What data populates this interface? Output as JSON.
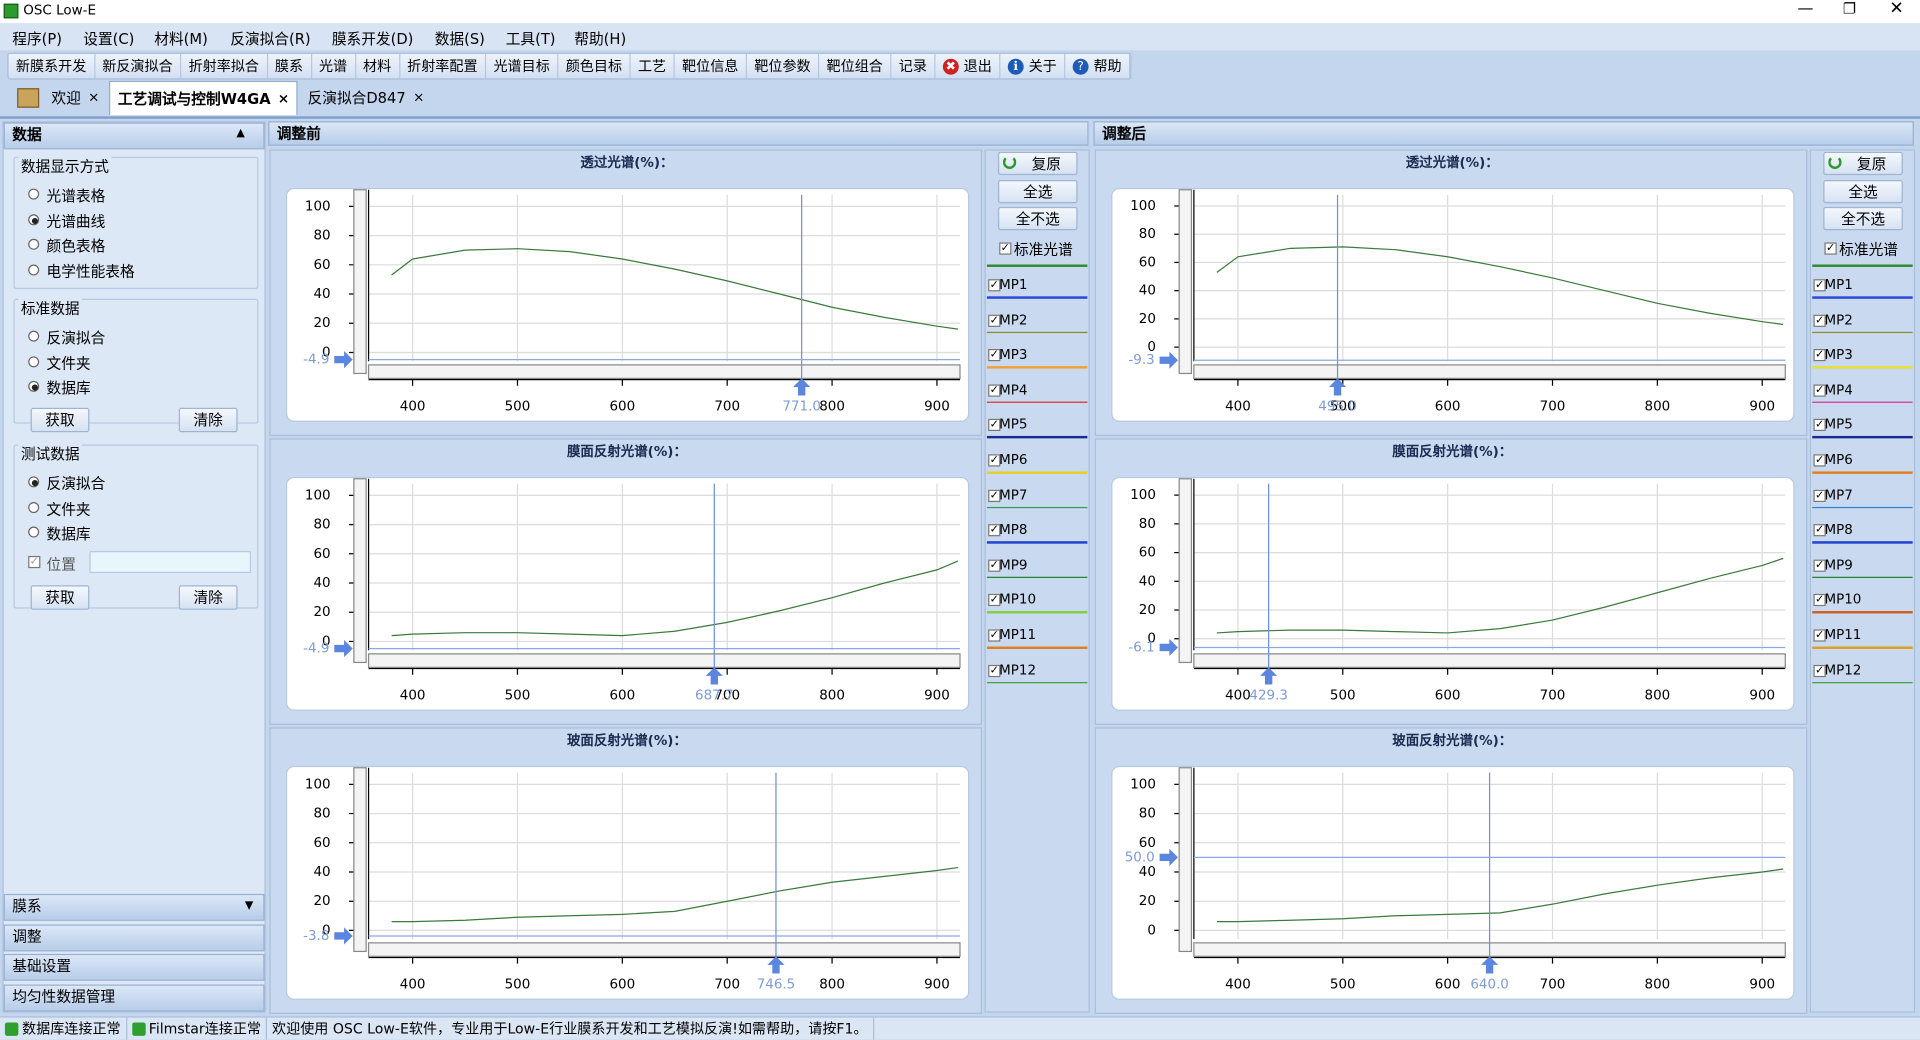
{
  "window": {
    "title": "OSC Low-E"
  },
  "menu": [
    "程序(P)",
    "设置(C)",
    "材料(M)",
    "反演拟合(R)",
    "膜系开发(D)",
    "数据(S)",
    "工具(T)",
    "帮助(H)"
  ],
  "toolbar": [
    "新膜系开发",
    "新反演拟合",
    "折射率拟合",
    "膜系",
    "光谱",
    "材料",
    "折射率配置",
    "光谱目标",
    "颜色目标",
    "工艺",
    "靶位信息",
    "靶位参数",
    "靶位组合",
    "记录",
    "退出",
    "关于",
    "帮助"
  ],
  "tabs": [
    "欢迎",
    "工艺调试与控制W4GA",
    "反演拟合D847"
  ],
  "active_tab": 1,
  "left": {
    "header": "数据",
    "groups": [
      {
        "title": "数据显示方式",
        "options": [
          "光谱表格",
          "光谱曲线",
          "颜色表格",
          "电学性能表格"
        ],
        "selected": 1
      },
      {
        "title": "标准数据",
        "options": [
          "反演拟合",
          "文件夹",
          "数据库"
        ],
        "selected": 2,
        "buttons": [
          "获取",
          "清除"
        ]
      },
      {
        "title": "测试数据",
        "options": [
          "反演拟合",
          "文件夹",
          "数据库"
        ],
        "selected": 0,
        "checkbox": "位置",
        "buttons": [
          "获取",
          "清除"
        ]
      }
    ],
    "accordion": [
      "膜系",
      "调整",
      "基础设置",
      "均匀性数据管理"
    ]
  },
  "panels": [
    {
      "title": "调整前",
      "buttons": [
        "复原",
        "全选",
        "全不选"
      ],
      "standard": "标准光谱",
      "mp": [
        {
          "name": "MP1",
          "color": "#2b45d8"
        },
        {
          "name": "MP2",
          "color": "#8a8a2a"
        },
        {
          "name": "MP3",
          "color": "#f0a030"
        },
        {
          "name": "MP4",
          "color": "#d83030"
        },
        {
          "name": "MP5",
          "color": "#1a2a90"
        },
        {
          "name": "MP6",
          "color": "#e8d020"
        },
        {
          "name": "MP7",
          "color": "#30a050"
        },
        {
          "name": "MP8",
          "color": "#2040d0"
        },
        {
          "name": "MP9",
          "color": "#208030"
        },
        {
          "name": "MP10",
          "color": "#80d040"
        },
        {
          "name": "MP11",
          "color": "#e08020"
        },
        {
          "name": "MP12",
          "color": "#40a040"
        }
      ],
      "charts": [
        {
          "type": "line",
          "title": "透过光谱(%)：",
          "color": "#3a7a3a",
          "x": [
            380,
            400,
            450,
            500,
            550,
            600,
            650,
            700,
            750,
            800,
            850,
            900,
            920
          ],
          "values": [
            53,
            64,
            70,
            71,
            69,
            64,
            57,
            49,
            40,
            31,
            24,
            18,
            16
          ],
          "xlim": [
            358,
            922
          ],
          "ylim": [
            -6,
            108
          ],
          "xticks": [
            400,
            500,
            600,
            700,
            800,
            900
          ],
          "yticks": [
            0,
            20,
            40,
            60,
            80,
            100
          ],
          "cursor_x": {
            "value": 771,
            "label": "771.0"
          },
          "marker_y": -4.9
        },
        {
          "type": "line",
          "title": "膜面反射光谱(%)：",
          "color": "#3a7a3a",
          "x": [
            380,
            400,
            450,
            500,
            550,
            600,
            650,
            700,
            750,
            800,
            850,
            900,
            920
          ],
          "values": [
            4,
            5,
            6,
            6,
            5,
            4,
            7,
            13,
            21,
            30,
            40,
            49,
            55
          ],
          "xlim": [
            358,
            922
          ],
          "ylim": [
            -6,
            108
          ],
          "xticks": [
            400,
            500,
            600,
            700,
            800,
            900
          ],
          "yticks": [
            0,
            20,
            40,
            60,
            80,
            100
          ],
          "cursor_x": 687.7,
          "marker_y": -4.9
        },
        {
          "type": "line",
          "title": "玻面反射光谱(%)：",
          "color": "#3a7a3a",
          "x": [
            380,
            400,
            450,
            500,
            550,
            600,
            650,
            700,
            750,
            800,
            850,
            900,
            920
          ],
          "values": [
            6,
            6,
            7,
            9,
            10,
            11,
            13,
            20,
            27,
            33,
            37,
            41,
            43
          ],
          "xlim": [
            358,
            922
          ],
          "ylim": [
            -6,
            108
          ],
          "xticks": [
            400,
            500,
            600,
            700,
            800,
            900
          ],
          "yticks": [
            0,
            20,
            40,
            60,
            80,
            100
          ],
          "cursor_x": 746.5,
          "marker_y": -3.8
        }
      ]
    },
    {
      "title": "调整后",
      "buttons": [
        "复原",
        "全选",
        "全不选"
      ],
      "standard": "标准光谱",
      "mp": [
        {
          "name": "MP1",
          "color": "#2b45d8"
        },
        {
          "name": "MP2",
          "color": "#8a8a2a"
        },
        {
          "name": "MP3",
          "color": "#e8e030"
        },
        {
          "name": "MP4",
          "color": "#d83090"
        },
        {
          "name": "MP5",
          "color": "#1a2a90"
        },
        {
          "name": "MP6",
          "color": "#e08020"
        },
        {
          "name": "MP7",
          "color": "#3080d0"
        },
        {
          "name": "MP8",
          "color": "#2040d0"
        },
        {
          "name": "MP9",
          "color": "#208030"
        },
        {
          "name": "MP10",
          "color": "#d06020"
        },
        {
          "name": "MP11",
          "color": "#e0a020"
        },
        {
          "name": "MP12",
          "color": "#40a040"
        }
      ],
      "charts": [
        {
          "type": "line",
          "title": "透过光谱(%)：",
          "color": "#3a7a3a",
          "x": [
            380,
            400,
            450,
            500,
            550,
            600,
            650,
            700,
            750,
            800,
            850,
            900,
            920
          ],
          "values": [
            53,
            64,
            70,
            71,
            69,
            64,
            57,
            49,
            40,
            31,
            24,
            18,
            16
          ],
          "xlim": [
            358,
            922
          ],
          "ylim": [
            -10,
            108
          ],
          "xticks": [
            400,
            500,
            600,
            700,
            800,
            900
          ],
          "yticks": [
            0,
            20,
            40,
            60,
            80,
            100
          ],
          "cursor_x": {
            "value": 495,
            "label": "495.0"
          },
          "marker_y": -9.3
        },
        {
          "type": "line",
          "title": "膜面反射光谱(%)：",
          "color": "#3a7a3a",
          "x": [
            380,
            400,
            450,
            500,
            550,
            600,
            650,
            700,
            750,
            800,
            850,
            900,
            920
          ],
          "values": [
            4,
            5,
            6,
            6,
            5,
            4,
            7,
            13,
            22,
            32,
            42,
            51,
            56
          ],
          "xlim": [
            358,
            922
          ],
          "ylim": [
            -8,
            108
          ],
          "xticks": [
            400,
            500,
            600,
            700,
            800,
            900
          ],
          "yticks": [
            0,
            20,
            40,
            60,
            80,
            100
          ],
          "cursor_x": 429.3,
          "marker_y": -6.1
        },
        {
          "type": "line",
          "title": "玻面反射光谱(%)：",
          "color": "#3a7a3a",
          "x": [
            380,
            400,
            450,
            500,
            550,
            600,
            650,
            700,
            750,
            800,
            850,
            900,
            920
          ],
          "values": [
            6,
            6,
            7,
            8,
            10,
            11,
            12,
            18,
            25,
            31,
            36,
            40,
            42
          ],
          "xlim": [
            358,
            922
          ],
          "ylim": [
            -6,
            108
          ],
          "xticks": [
            400,
            500,
            600,
            700,
            800,
            900
          ],
          "yticks": [
            0,
            20,
            40,
            60,
            80,
            100
          ],
          "cursor_x": {
            "value": 640,
            "label": "640.0"
          },
          "marker_y": {
            "value": 50,
            "label": "50.0"
          }
        }
      ]
    }
  ],
  "status": [
    "数据库连接正常",
    "Filmstar连接正常",
    "欢迎使用 OSC Low-E软件，专业用于Low-E行业膜系开发和工艺模拟反演!如需帮助，请按F1。"
  ]
}
